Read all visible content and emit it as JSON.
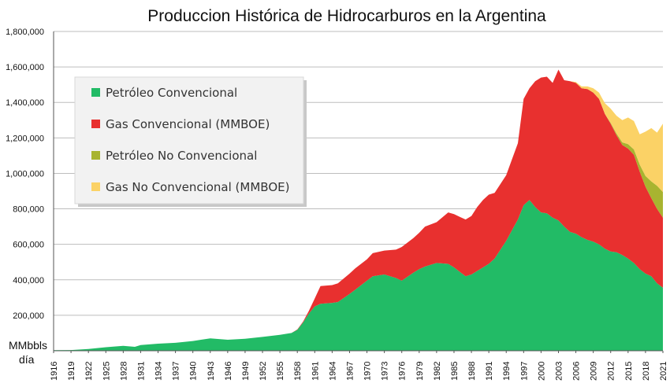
{
  "chart_data": {
    "type": "area",
    "title": "Produccion Histórica de Hidrocarburos en la Argentina",
    "ylabel": "MMbbls día",
    "ylabel_lines": [
      "MMbbls",
      "día"
    ],
    "ylim": [
      0,
      1800000
    ],
    "y_ticks": [
      "1,800,000",
      "1,600,000",
      "1,400,000",
      "1,200,000",
      "1,000,000",
      "800,000",
      "600,000",
      "400,000",
      "200,000",
      ""
    ],
    "y_tick_values": [
      1800000,
      1600000,
      1400000,
      1200000,
      1000000,
      800000,
      600000,
      400000,
      200000,
      0
    ],
    "x_ticks": [
      1916,
      1919,
      1922,
      1925,
      1928,
      1931,
      1934,
      1937,
      1940,
      1943,
      1946,
      1949,
      1952,
      1955,
      1958,
      1961,
      1964,
      1967,
      1970,
      1973,
      1976,
      1979,
      1982,
      1985,
      1988,
      1991,
      1994,
      1997,
      2000,
      2003,
      2006,
      2009,
      2012,
      2015,
      2018,
      2021
    ],
    "grid": "horizontal",
    "stacked": true,
    "legend_position": "top-left",
    "x": [
      1916,
      1919,
      1922,
      1925,
      1928,
      1930,
      1931,
      1934,
      1937,
      1940,
      1943,
      1946,
      1949,
      1952,
      1955,
      1957,
      1958,
      1959,
      1960,
      1961,
      1962,
      1964,
      1965,
      1967,
      1968,
      1970,
      1971,
      1973,
      1975,
      1976,
      1978,
      1979,
      1980,
      1982,
      1984,
      1985,
      1986,
      1987,
      1988,
      1989,
      1990,
      1991,
      1992,
      1994,
      1995,
      1996,
      1997,
      1998,
      1999,
      2000,
      2001,
      2002,
      2003,
      2004,
      2005,
      2006,
      2007,
      2008,
      2009,
      2010,
      2011,
      2012,
      2013,
      2014,
      2015,
      2016,
      2017,
      2018,
      2019,
      2020,
      2021
    ],
    "series": [
      {
        "name": "Petróleo Convencional",
        "color": "#22bb66",
        "values": [
          3000,
          4000,
          10000,
          20000,
          28000,
          22000,
          32000,
          40000,
          45000,
          55000,
          70000,
          62000,
          68000,
          78000,
          90000,
          100000,
          118000,
          160000,
          210000,
          250000,
          265000,
          270000,
          275000,
          320000,
          345000,
          395000,
          420000,
          430000,
          410000,
          395000,
          440000,
          460000,
          475000,
          495000,
          490000,
          470000,
          445000,
          420000,
          430000,
          450000,
          470000,
          490000,
          520000,
          620000,
          680000,
          740000,
          820000,
          850000,
          810000,
          780000,
          775000,
          750000,
          735000,
          700000,
          670000,
          660000,
          640000,
          625000,
          615000,
          600000,
          575000,
          560000,
          555000,
          540000,
          520000,
          495000,
          460000,
          435000,
          420000,
          380000,
          355000
        ]
      },
      {
        "name": "Gas Convencional (MMBOE)",
        "color": "#e8302f",
        "values": [
          0,
          0,
          0,
          0,
          0,
          0,
          0,
          0,
          0,
          0,
          0,
          0,
          0,
          0,
          0,
          0,
          2000,
          5000,
          15000,
          45000,
          100000,
          100000,
          105000,
          115000,
          120000,
          120000,
          130000,
          135000,
          160000,
          190000,
          195000,
          205000,
          225000,
          230000,
          290000,
          300000,
          310000,
          320000,
          330000,
          360000,
          380000,
          390000,
          370000,
          370000,
          400000,
          430000,
          600000,
          630000,
          710000,
          760000,
          770000,
          760000,
          850000,
          825000,
          850000,
          850000,
          840000,
          850000,
          840000,
          820000,
          760000,
          720000,
          660000,
          620000,
          620000,
          610000,
          550000,
          490000,
          440000,
          420000,
          395000
        ]
      },
      {
        "name": "Petróleo No Convencional",
        "color": "#a8b430",
        "values": [
          0,
          0,
          0,
          0,
          0,
          0,
          0,
          0,
          0,
          0,
          0,
          0,
          0,
          0,
          0,
          0,
          0,
          0,
          0,
          0,
          0,
          0,
          0,
          0,
          0,
          0,
          0,
          0,
          0,
          0,
          0,
          0,
          0,
          0,
          0,
          0,
          0,
          0,
          0,
          0,
          0,
          0,
          0,
          0,
          0,
          0,
          0,
          0,
          0,
          0,
          0,
          0,
          0,
          0,
          0,
          0,
          0,
          0,
          0,
          0,
          0,
          5000,
          10000,
          15000,
          25000,
          30000,
          40000,
          60000,
          95000,
          130000,
          145000
        ]
      },
      {
        "name": "Gas No Convencional (MMBOE)",
        "color": "#fbd266",
        "values": [
          0,
          0,
          0,
          0,
          0,
          0,
          0,
          0,
          0,
          0,
          0,
          0,
          0,
          0,
          0,
          0,
          0,
          0,
          0,
          0,
          0,
          0,
          0,
          0,
          0,
          0,
          0,
          0,
          0,
          0,
          0,
          0,
          0,
          0,
          0,
          0,
          0,
          0,
          0,
          0,
          0,
          0,
          0,
          0,
          0,
          0,
          0,
          0,
          0,
          0,
          0,
          0,
          0,
          0,
          0,
          5000,
          10000,
          15000,
          25000,
          35000,
          60000,
          80000,
          100000,
          125000,
          150000,
          160000,
          170000,
          250000,
          300000,
          300000,
          385000
        ]
      }
    ]
  }
}
